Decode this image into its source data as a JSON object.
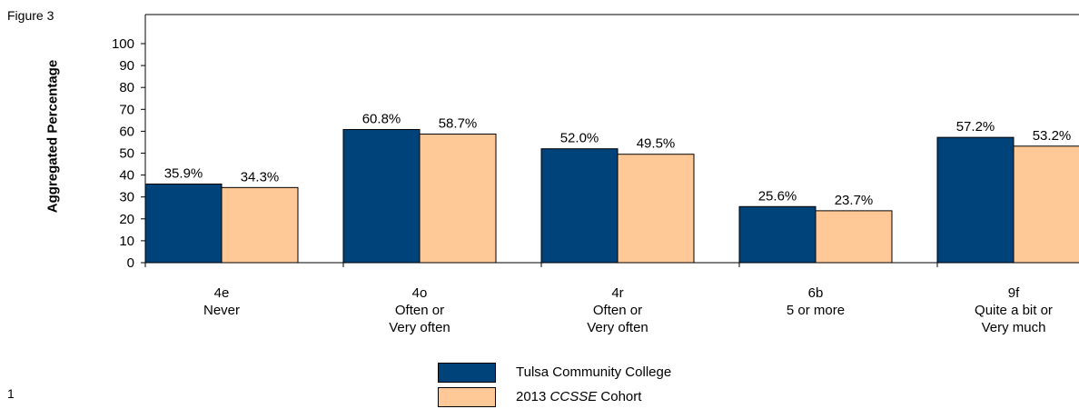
{
  "figure_label": "Figure 3",
  "page_number": "1",
  "colors": {
    "series1": "#00427A",
    "series2": "#FFC896",
    "axis": "#000000"
  },
  "chart_data": {
    "type": "bar",
    "ylabel": "Aggregated Percentage",
    "xlabel": "",
    "ylim": [
      0,
      100
    ],
    "yticks": [
      0,
      10,
      20,
      30,
      40,
      50,
      60,
      70,
      80,
      90,
      100
    ],
    "categories": [
      [
        "4e",
        "Never"
      ],
      [
        "4o",
        "Often or",
        "Very often"
      ],
      [
        "4r",
        "Often or",
        "Very often"
      ],
      [
        "6b",
        "5 or more"
      ],
      [
        "9f",
        "Quite a bit or",
        "Very much"
      ]
    ],
    "series": [
      {
        "name": "Tulsa Community College",
        "values": [
          35.9,
          60.8,
          52.0,
          25.6,
          57.2
        ],
        "labels": [
          "35.9%",
          "60.8%",
          "52.0%",
          "25.6%",
          "57.2%"
        ]
      },
      {
        "name": "2013 CCSSE Cohort",
        "values": [
          34.3,
          58.7,
          49.5,
          23.7,
          53.2
        ],
        "labels": [
          "34.3%",
          "58.7%",
          "49.5%",
          "23.7%",
          "53.2%"
        ]
      }
    ],
    "legend": {
      "position": "bottom",
      "items": [
        {
          "pre": "Tulsa Community College",
          "em": "",
          "post": ""
        },
        {
          "pre": "2013 ",
          "em": "CCSSE",
          "post": " Cohort"
        }
      ]
    }
  }
}
